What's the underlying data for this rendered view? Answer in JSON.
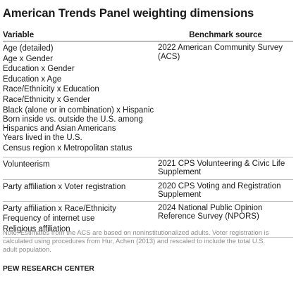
{
  "title": "American Trends Panel weighting dimensions",
  "headers": {
    "variable": "Variable",
    "benchmark": "Benchmark source"
  },
  "groups": [
    {
      "variables": [
        "Age (detailed)",
        "Age x Gender",
        "Education x Gender",
        "Education x Age",
        "Race/Ethnicity x Education",
        "Race/Ethnicity x Gender",
        "Black (alone or in combination) x Hispanic",
        "Born inside vs. outside the U.S. among",
        "Hispanics and Asian Americans",
        "Years lived in the U.S.",
        "Census region x Metropolitan status"
      ],
      "source_lines": [
        "2022 American Community Survey",
        "(ACS)"
      ]
    },
    {
      "variables": [
        "Volunteerism"
      ],
      "source_lines": [
        "2021 CPS Volunteering & Civic Life",
        "Supplement"
      ]
    },
    {
      "variables": [
        "Party affiliation x Voter registration"
      ],
      "source_lines": [
        "2020 CPS Voting and Registration",
        "Supplement"
      ]
    },
    {
      "variables": [
        "Party affiliation x Race/Ethnicity",
        "Frequency of internet use",
        "Religious affiliation"
      ],
      "source_lines": [
        "2024 National Public Opinion",
        "Reference Survey (NPORS)"
      ]
    }
  ],
  "note_lines": [
    "Note: Estimates from the ACS are based on noninstitutionalized adults. Voter registration is",
    "calculated using procedures from Hur, Achen (2013) and rescaled to include the total U.S.",
    "adult population."
  ],
  "footer": "PEW RESEARCH CENTER"
}
